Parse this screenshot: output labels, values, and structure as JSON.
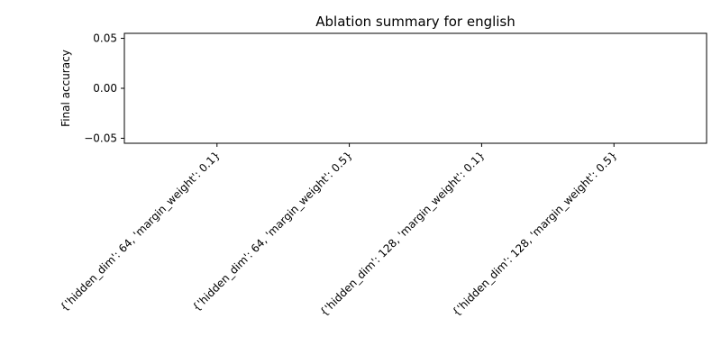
{
  "chart_data": {
    "type": "bar",
    "title": "Ablation summary for english",
    "xlabel": "",
    "ylabel": "Final accuracy",
    "categories": [
      "{'hidden_dim': 64, 'margin_weight': 0.1}",
      "{'hidden_dim': 64, 'margin_weight': 0.5}",
      "{'hidden_dim': 128, 'margin_weight': 0.1}",
      "{'hidden_dim': 128, 'margin_weight': 0.5}"
    ],
    "values": [
      0,
      0,
      0,
      0
    ],
    "ylim": [
      -0.055,
      0.055
    ],
    "yticks": [
      -0.05,
      0.0,
      0.05
    ],
    "ytick_labels": [
      "−0.05",
      "0.00",
      "0.05"
    ],
    "grid": false,
    "legend": "none"
  }
}
